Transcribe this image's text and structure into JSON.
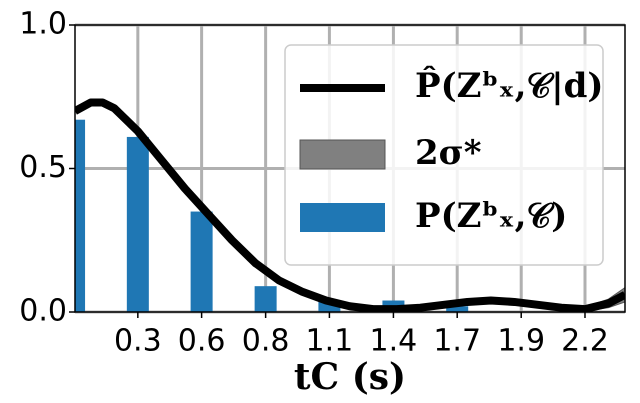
{
  "chart_data": {
    "type": "bar",
    "xlabel": "tC (s)",
    "xlim": [
      0.033,
      2.37
    ],
    "ylim": [
      0,
      1
    ],
    "xticks": [
      {
        "value": 0.3,
        "label": "0.3"
      },
      {
        "value": 0.571,
        "label": "0.6"
      },
      {
        "value": 0.843,
        "label": "0.8"
      },
      {
        "value": 1.114,
        "label": "1.1"
      },
      {
        "value": 1.386,
        "label": "1.4"
      },
      {
        "value": 1.657,
        "label": "1.7"
      },
      {
        "value": 1.929,
        "label": "1.9"
      },
      {
        "value": 2.2,
        "label": "2.2"
      }
    ],
    "yticks": [
      {
        "value": 0,
        "label": "0.0"
      },
      {
        "value": 0.5,
        "label": "0.5"
      },
      {
        "value": 1,
        "label": "1.0"
      }
    ],
    "grid": true,
    "legend": "upper right",
    "bars": {
      "name": "P(Zᵇₓ,𝒞)",
      "color": "#1f77b4",
      "x": [
        0.029,
        0.3,
        0.571,
        0.843,
        1.114,
        1.386,
        1.657
      ],
      "values": [
        0.67,
        0.61,
        0.35,
        0.09,
        0.04,
        0.04,
        0.02
      ]
    },
    "line": {
      "name": "P̂(Zᵇₓ,𝒞|d)",
      "color": "#000000",
      "x": [
        0.033,
        0.1,
        0.15,
        0.2,
        0.3,
        0.4,
        0.5,
        0.6,
        0.7,
        0.8,
        0.9,
        1.0,
        1.1,
        1.2,
        1.3,
        1.4,
        1.5,
        1.6,
        1.7,
        1.8,
        1.9,
        2.0,
        2.1,
        2.2,
        2.3,
        2.37
      ],
      "values": [
        0.7,
        0.73,
        0.73,
        0.71,
        0.63,
        0.53,
        0.43,
        0.34,
        0.25,
        0.17,
        0.11,
        0.07,
        0.04,
        0.02,
        0.01,
        0.01,
        0.015,
        0.025,
        0.035,
        0.04,
        0.035,
        0.025,
        0.015,
        0.01,
        0.03,
        0.06
      ]
    },
    "band": {
      "name": "2σ*",
      "color": "#808080",
      "values": [
        0.005,
        0.005,
        0.005,
        0.005,
        0.005,
        0.005,
        0.005,
        0.005,
        0.005,
        0.005,
        0.005,
        0.005,
        0.005,
        0.005,
        0.005,
        0.005,
        0.005,
        0.005,
        0.005,
        0.005,
        0.005,
        0.005,
        0.008,
        0.015,
        0.03,
        0.05
      ]
    }
  }
}
